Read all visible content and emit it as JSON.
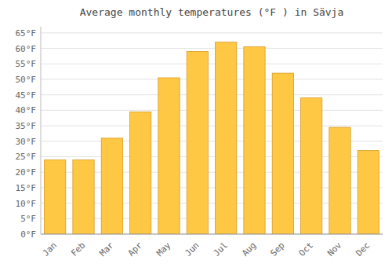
{
  "chart_data": {
    "type": "bar",
    "title": "Average monthly temperatures (°F ) in Sävja",
    "categories": [
      "Jan",
      "Feb",
      "Mar",
      "Apr",
      "May",
      "Jun",
      "Jul",
      "Aug",
      "Sep",
      "Oct",
      "Nov",
      "Dec"
    ],
    "values": [
      24,
      24,
      31,
      39.5,
      50.5,
      59,
      62,
      60.5,
      52,
      44,
      34.5,
      27
    ],
    "color": "#FFC844",
    "ylim": [
      0,
      67
    ],
    "yticks": [
      {
        "value": 0,
        "label": "0°F"
      },
      {
        "value": 5,
        "label": "5°F"
      },
      {
        "value": 10,
        "label": "10°F"
      },
      {
        "value": 15,
        "label": "15°F"
      },
      {
        "value": 20,
        "label": "20°F"
      },
      {
        "value": 25,
        "label": "25°F"
      },
      {
        "value": 30,
        "label": "30°F"
      },
      {
        "value": 35,
        "label": "35°F"
      },
      {
        "value": 40,
        "label": "40°F"
      },
      {
        "value": 45,
        "label": "45°F"
      },
      {
        "value": 50,
        "label": "50°F"
      },
      {
        "value": 55,
        "label": "55°F"
      },
      {
        "value": 60,
        "label": "60°F"
      },
      {
        "value": 65,
        "label": "65°F"
      }
    ],
    "grid": true
  }
}
